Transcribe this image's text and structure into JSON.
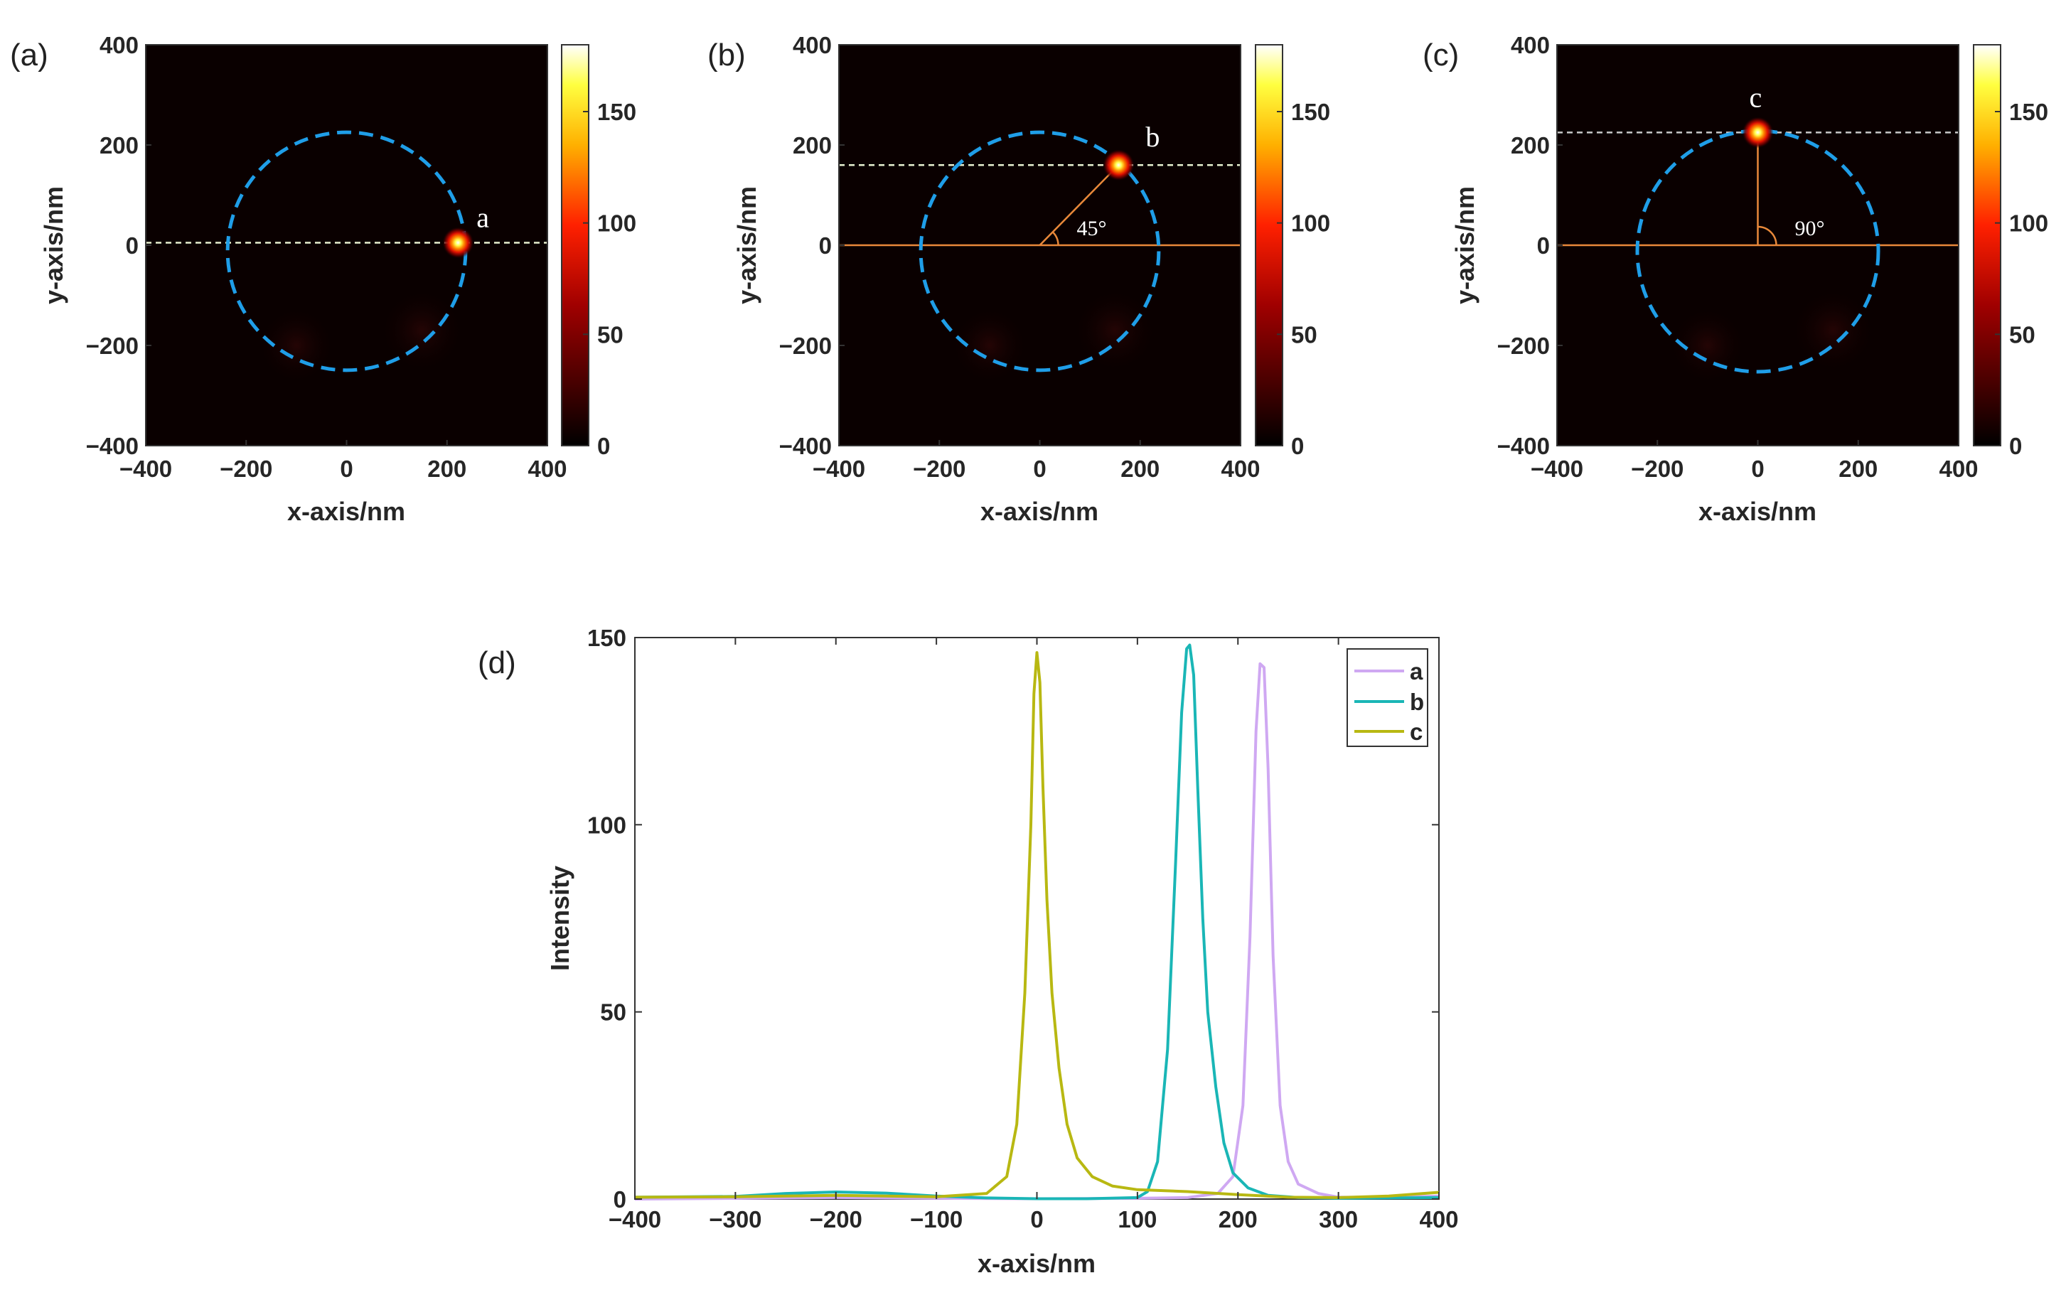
{
  "figure": {
    "panels": [
      {
        "label": "(a)",
        "point_label": "a",
        "angle_label": ""
      },
      {
        "label": "(b)",
        "point_label": "b",
        "angle_label": "45°"
      },
      {
        "label": "(c)",
        "point_label": "c",
        "angle_label": "90°"
      }
    ],
    "line_panel_label": "(d)"
  },
  "colors": {
    "map_bg": "#0a0000",
    "circle": "#1f9ee8",
    "guide": "#e8883a",
    "a": "#cfa8f2",
    "b": "#1ab6b6",
    "c": "#b8b812"
  },
  "chart_data": [
    {
      "type": "heatmap",
      "title": "(a)",
      "xlabel": "x-axis/nm",
      "ylabel": "y-axis/nm",
      "xlim": [
        -400,
        400
      ],
      "ylim": [
        -400,
        400
      ],
      "xticks": [
        -400,
        -200,
        0,
        200,
        400
      ],
      "yticks": [
        -400,
        -200,
        0,
        200,
        400
      ],
      "colorbar": {
        "range": [
          0,
          180
        ],
        "ticks": [
          0,
          50,
          100,
          150
        ]
      },
      "circle_center": [
        0,
        -12
      ],
      "circle_radius": 237,
      "spot": {
        "x": 222,
        "y": 5,
        "label": "a"
      },
      "dashed_line_y": 5,
      "angle_deg": 0
    },
    {
      "type": "heatmap",
      "title": "(b)",
      "xlabel": "x-axis/nm",
      "ylabel": "y-axis/nm",
      "xlim": [
        -400,
        400
      ],
      "ylim": [
        -400,
        400
      ],
      "xticks": [
        -400,
        -200,
        0,
        200,
        400
      ],
      "yticks": [
        -400,
        -200,
        0,
        200,
        400
      ],
      "colorbar": {
        "range": [
          0,
          180
        ],
        "ticks": [
          0,
          50,
          100,
          150
        ]
      },
      "circle_center": [
        0,
        -12
      ],
      "circle_radius": 237,
      "spot": {
        "x": 157,
        "y": 160,
        "label": "b"
      },
      "dashed_line_y": 160,
      "angle_deg": 45
    },
    {
      "type": "heatmap",
      "title": "(c)",
      "xlabel": "x-axis/nm",
      "ylabel": "y-axis/nm",
      "xlim": [
        -400,
        400
      ],
      "ylim": [
        -400,
        400
      ],
      "xticks": [
        -400,
        -200,
        0,
        200,
        400
      ],
      "yticks": [
        -400,
        -200,
        0,
        200,
        400
      ],
      "colorbar": {
        "range": [
          0,
          180
        ],
        "ticks": [
          0,
          50,
          100,
          150
        ]
      },
      "circle_center": [
        0,
        -12
      ],
      "circle_radius": 240,
      "spot": {
        "x": 0,
        "y": 225,
        "label": "c"
      },
      "dashed_line_y": 225,
      "angle_deg": 90
    },
    {
      "type": "line",
      "title": "(d)",
      "xlabel": "x-axis/nm",
      "ylabel": "Intensity",
      "xlim": [
        -400,
        400
      ],
      "ylim": [
        0,
        150
      ],
      "xticks": [
        -400,
        -300,
        -200,
        -100,
        0,
        100,
        200,
        300,
        400
      ],
      "yticks": [
        0,
        50,
        100,
        150
      ],
      "legend": "top-right",
      "series": [
        {
          "name": "a",
          "x": [
            -400,
            -250,
            -200,
            -100,
            0,
            100,
            150,
            180,
            195,
            205,
            212,
            218,
            222,
            226,
            230,
            235,
            242,
            250,
            260,
            280,
            300,
            350,
            400
          ],
          "y": [
            0,
            0.3,
            0.4,
            0.2,
            0.1,
            0.2,
            0.4,
            1.5,
            6,
            25,
            70,
            125,
            143,
            142,
            115,
            65,
            25,
            10,
            4,
            1.5,
            0.5,
            0.5,
            0.8
          ]
        },
        {
          "name": "b",
          "x": [
            -400,
            -300,
            -250,
            -200,
            -150,
            -100,
            -50,
            0,
            50,
            100,
            110,
            120,
            130,
            138,
            144,
            149,
            152,
            156,
            160,
            165,
            170,
            178,
            186,
            195,
            210,
            230,
            260,
            300,
            350,
            400
          ],
          "y": [
            0.5,
            0.7,
            1.5,
            1.9,
            1.6,
            0.8,
            0.3,
            0.1,
            0.1,
            0.4,
            2,
            10,
            40,
            90,
            130,
            147,
            148,
            140,
            110,
            75,
            50,
            30,
            15,
            7,
            3,
            1,
            0.4,
            0.2,
            0.3,
            0.4
          ]
        },
        {
          "name": "c",
          "x": [
            -400,
            -300,
            -250,
            -200,
            -150,
            -100,
            -50,
            -30,
            -20,
            -12,
            -6,
            -3,
            0,
            3,
            6,
            10,
            15,
            22,
            30,
            40,
            55,
            75,
            100,
            150,
            200,
            250,
            300,
            350,
            400
          ],
          "y": [
            0.5,
            0.6,
            0.8,
            1,
            0.8,
            0.6,
            1.5,
            6,
            20,
            55,
            100,
            135,
            146,
            138,
            110,
            80,
            55,
            35,
            20,
            11,
            6,
            3.5,
            2.5,
            2,
            1.2,
            0.5,
            0.4,
            0.8,
            1.8
          ]
        }
      ]
    }
  ]
}
